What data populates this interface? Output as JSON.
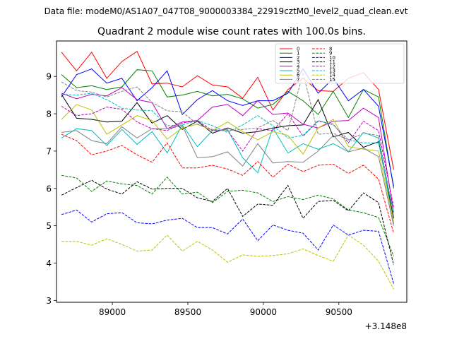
{
  "chart_data": {
    "type": "line",
    "suptitle": "Data file: modeM0/AS1A07_047T08_9000003384_22919cztM0_level2_quad_clean.evt",
    "title": "Quadrant 2 module wise count rates with 100.0s bins.",
    "xlabel": "",
    "ylabel": "",
    "x_offset_label": "+3.148e8",
    "xlim": [
      88630,
      90950
    ],
    "ylim": [
      2.95,
      9.95
    ],
    "xticks": [
      89000,
      89500,
      90000,
      90500
    ],
    "yticks": [
      3,
      4,
      5,
      6,
      7,
      8,
      9
    ],
    "legend_position": "top-right",
    "x": [
      88663,
      88763,
      88863,
      88963,
      89063,
      89163,
      89263,
      89363,
      89463,
      89563,
      89663,
      89763,
      89863,
      89963,
      90063,
      90163,
      90263,
      90363,
      90463,
      90563,
      90663,
      90763,
      90863
    ],
    "series": [
      {
        "name": "0",
        "color": "#ff0000",
        "dash": "solid",
        "values": [
          9.65,
          9.15,
          9.65,
          8.95,
          9.4,
          9.67,
          8.8,
          8.82,
          8.72,
          9.02,
          8.77,
          8.72,
          8.42,
          8.98,
          8.1,
          8.65,
          8.95,
          8.62,
          8.6,
          8.95,
          9.1,
          8.65,
          6.5
        ]
      },
      {
        "name": "1",
        "color": "#008000",
        "dash": "solid",
        "values": [
          9.05,
          8.7,
          8.75,
          8.65,
          8.72,
          9.18,
          9.15,
          8.45,
          8.5,
          8.6,
          8.48,
          8.52,
          8.4,
          8.15,
          8.25,
          8.6,
          8.35,
          7.98,
          8.6,
          7.9,
          8.65,
          8.45,
          6.0
        ]
      },
      {
        "name": "2",
        "color": "#0000ff",
        "dash": "solid",
        "values": [
          8.45,
          9.05,
          9.2,
          8.82,
          8.95,
          8.35,
          8.7,
          9.15,
          7.98,
          8.38,
          8.62,
          8.35,
          8.22,
          8.35,
          8.35,
          8.55,
          9.2,
          8.55,
          8.95,
          8.35,
          8.65,
          8.2,
          6.05
        ]
      },
      {
        "name": "3",
        "color": "#000000",
        "dash": "solid",
        "values": [
          8.52,
          7.88,
          7.85,
          7.78,
          7.8,
          8.3,
          7.75,
          7.95,
          7.58,
          7.8,
          7.48,
          7.62,
          7.48,
          7.52,
          7.62,
          7.68,
          7.7,
          8.38,
          7.38,
          7.5,
          7.1,
          7.25,
          5.2
        ]
      },
      {
        "name": "4",
        "color": "#bf00bf",
        "dash": "solid",
        "values": [
          8.55,
          8.4,
          8.52,
          8.48,
          8.7,
          8.38,
          8.3,
          7.6,
          7.78,
          7.82,
          8.18,
          8.25,
          7.95,
          8.35,
          7.98,
          8.02,
          7.72,
          7.62,
          7.8,
          7.82,
          8.15,
          7.9,
          5.35
        ]
      },
      {
        "name": "5",
        "color": "#00bfbf",
        "dash": "solid",
        "values": [
          7.35,
          7.6,
          7.55,
          7.15,
          7.58,
          7.18,
          7.52,
          6.95,
          7.7,
          7.12,
          7.55,
          7.58,
          6.82,
          6.42,
          7.62,
          6.95,
          7.2,
          7.05,
          7.2,
          6.98,
          7.5,
          7.35,
          5.05
        ]
      },
      {
        "name": "6",
        "color": "#bfbf00",
        "dash": "solid",
        "values": [
          7.85,
          8.25,
          8.1,
          7.45,
          7.7,
          7.95,
          7.82,
          7.32,
          7.62,
          7.72,
          7.55,
          7.78,
          7.52,
          7.3,
          7.52,
          7.42,
          6.92,
          7.62,
          7.85,
          7.12,
          7.05,
          7.0,
          5.1
        ]
      },
      {
        "name": "7",
        "color": "#808080",
        "dash": "solid",
        "values": [
          7.5,
          7.55,
          7.28,
          7.2,
          7.65,
          7.35,
          7.6,
          7.6,
          7.68,
          6.82,
          6.85,
          6.98,
          6.6,
          7.2,
          6.68,
          6.72,
          6.7,
          7.0,
          7.42,
          6.98,
          7.08,
          6.85,
          5.0
        ]
      },
      {
        "name": "8",
        "color": "#ff0000",
        "dash": "dashed",
        "values": [
          7.45,
          7.28,
          6.9,
          7.0,
          7.15,
          6.9,
          6.7,
          7.22,
          6.55,
          6.55,
          6.62,
          6.52,
          6.35,
          6.72,
          6.3,
          6.65,
          6.45,
          6.62,
          6.65,
          6.4,
          6.62,
          6.25,
          4.8
        ]
      },
      {
        "name": "9",
        "color": "#008000",
        "dash": "dashed",
        "values": [
          6.35,
          6.28,
          5.92,
          6.2,
          6.12,
          6.08,
          5.85,
          6.3,
          5.85,
          5.9,
          5.62,
          5.92,
          5.95,
          5.88,
          5.65,
          5.78,
          5.7,
          5.82,
          5.72,
          5.42,
          5.35,
          5.22,
          4.18
        ]
      },
      {
        "name": "10",
        "color": "#0000ff",
        "dash": "dashed",
        "values": [
          5.3,
          5.42,
          5.1,
          5.32,
          5.35,
          5.08,
          5.05,
          5.15,
          5.2,
          4.95,
          4.95,
          4.78,
          5.18,
          4.6,
          5.02,
          4.88,
          4.8,
          4.35,
          5.02,
          4.75,
          4.88,
          4.85,
          3.45
        ]
      },
      {
        "name": "11",
        "color": "#000000",
        "dash": "dashed",
        "values": [
          5.82,
          6.02,
          6.22,
          5.98,
          5.85,
          6.18,
          5.98,
          6.0,
          6.0,
          5.75,
          5.65,
          6.0,
          5.25,
          5.58,
          5.55,
          6.08,
          5.2,
          5.65,
          5.68,
          5.4,
          5.88,
          5.62,
          3.95
        ]
      },
      {
        "name": "12",
        "color": "#bf00bf",
        "dash": "dashed",
        "values": [
          8.2,
          7.95,
          8.0,
          8.18,
          8.12,
          7.78,
          7.6,
          7.55,
          7.75,
          7.82,
          7.55,
          7.55,
          7.0,
          7.6,
          7.55,
          8.0,
          7.4,
          7.8,
          7.72,
          7.22,
          7.8,
          7.55,
          5.5
        ]
      },
      {
        "name": "13",
        "color": "#00bfbf",
        "dash": "dashed",
        "values": [
          8.52,
          8.5,
          8.55,
          8.38,
          8.15,
          8.1,
          8.08,
          7.68,
          7.7,
          7.82,
          7.68,
          7.5,
          7.7,
          7.95,
          7.68,
          7.35,
          7.42,
          7.82,
          7.7,
          7.3,
          7.22,
          7.22,
          5.35
        ]
      },
      {
        "name": "14",
        "color": "#bfbf00",
        "dash": "dashed",
        "values": [
          4.58,
          4.58,
          4.48,
          4.65,
          4.5,
          4.32,
          4.35,
          4.75,
          4.32,
          4.58,
          4.35,
          4.02,
          4.22,
          4.18,
          4.2,
          4.25,
          4.38,
          4.2,
          4.05,
          4.75,
          4.48,
          4.05,
          3.3
        ]
      },
      {
        "name": "15",
        "color": "#808080",
        "dash": "dashed",
        "values": [
          8.85,
          8.62,
          8.58,
          8.45,
          8.6,
          8.72,
          8.3,
          8.08,
          8.05,
          7.72,
          7.58,
          7.55,
          7.58,
          7.62,
          7.82,
          7.55,
          9.1,
          7.45,
          7.48,
          7.3,
          7.48,
          7.42,
          5.25
        ]
      }
    ]
  }
}
